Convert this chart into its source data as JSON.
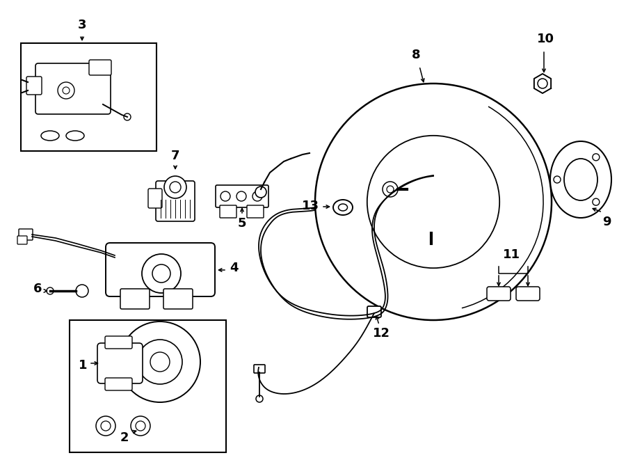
{
  "bg_color": "#ffffff",
  "line_color": "#000000",
  "lw": 1.3
}
